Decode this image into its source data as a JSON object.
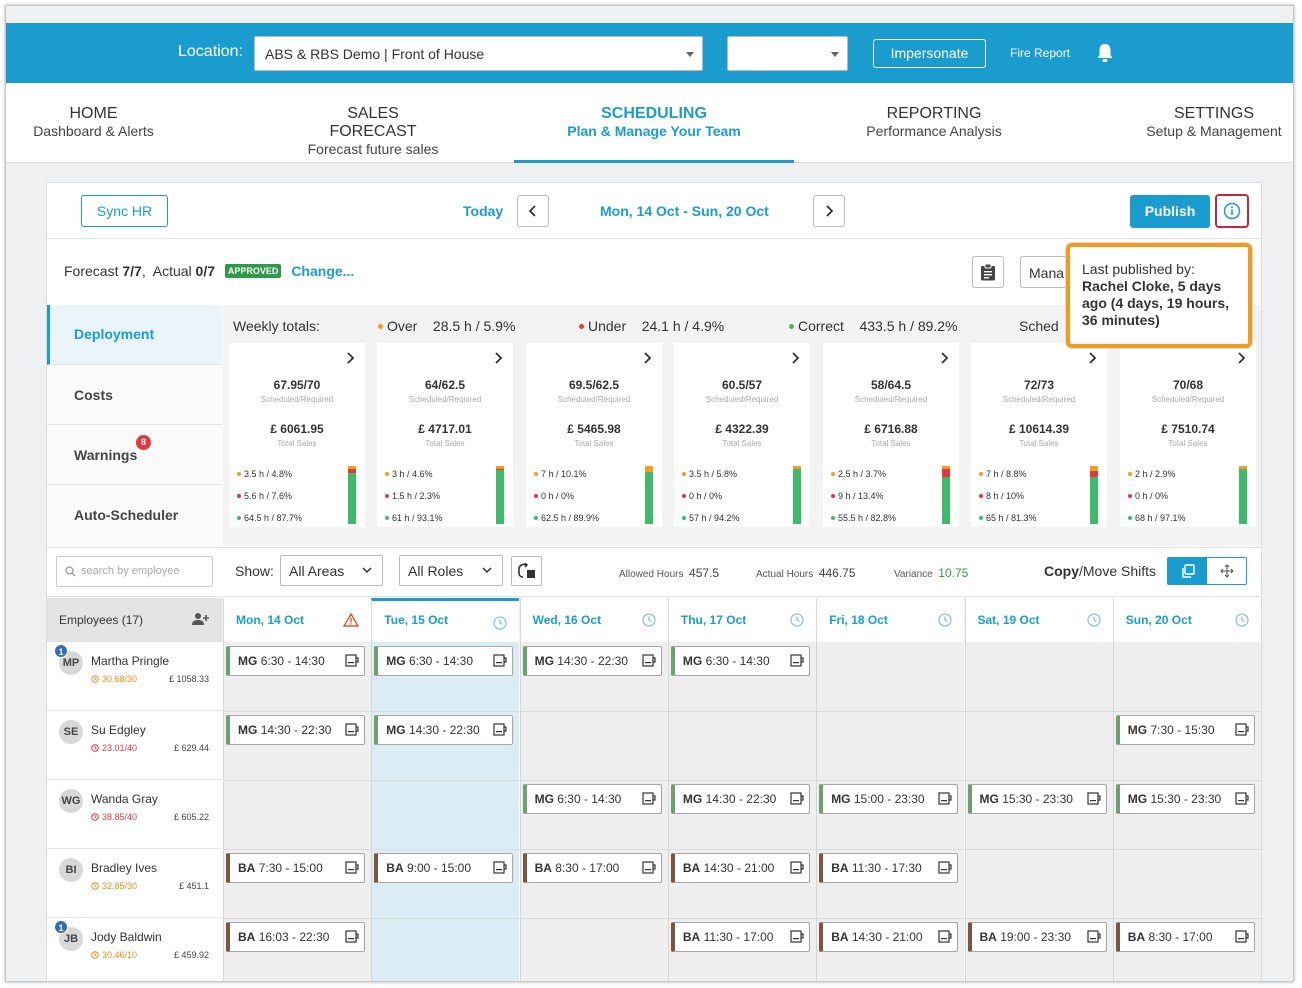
{
  "topbar": {
    "location_label": "Location:",
    "location_value": "ABS & RBS Demo | Front of House",
    "secondary_value": "",
    "impersonate_label": "Impersonate",
    "fire_report_label": "Fire Report",
    "accent_color": "#1a9ccf"
  },
  "nav": [
    {
      "title": "HOME",
      "subtitle": "Dashboard & Alerts"
    },
    {
      "title": "SALES FORECAST",
      "subtitle": "Forecast future sales"
    },
    {
      "title": "SCHEDULING",
      "subtitle": "Plan & Manage Your Team"
    },
    {
      "title": "REPORTING",
      "subtitle": "Performance Analysis"
    },
    {
      "title": "SETTINGS",
      "subtitle": "Setup & Management"
    }
  ],
  "header": {
    "sync_label": "Sync HR",
    "today_label": "Today",
    "date_range": "Mon, 14 Oct - Sun, 20 Oct",
    "publish_label": "Publish"
  },
  "forecast": {
    "forecast_label": "Forecast",
    "forecast_value": "7/7",
    "actual_label": "Actual",
    "actual_value": "0/7",
    "approved_badge": "APPROVED",
    "change_label": "Change...",
    "manager_select": "Mana"
  },
  "tooltip": {
    "line1": "Last published by:",
    "line2": "Rachel Cloke, 5 days ago (4 days, 19 hours, 36 minutes)"
  },
  "side_tabs": [
    {
      "label": "Deployment"
    },
    {
      "label": "Costs"
    },
    {
      "label": "Warnings",
      "badge": "8"
    },
    {
      "label": "Auto-Scheduler"
    }
  ],
  "weekly_totals": {
    "label": "Weekly totals:",
    "over_label": "Over",
    "over_value": "28.5 h  /  5.9%",
    "under_label": "Under",
    "under_value": "24.1 h  /  4.9%",
    "correct_label": "Correct",
    "correct_value": "433.5 h  /  89.2%",
    "sched_label": "Sched"
  },
  "day_cards": [
    {
      "sr": "67.95/70",
      "sales": "£ 6061.95",
      "over": "3.5 h  /  4.8%",
      "under": "5.6 h  /  7.6%",
      "correct": "64.5 h  /  87.7%",
      "bar_over": 0.048,
      "bar_under": 0.076
    },
    {
      "sr": "64/62.5",
      "sales": "£ 4717.01",
      "over": "3 h  /  4.6%",
      "under": "1.5 h  /  2.3%",
      "correct": "61 h  /  93.1%",
      "bar_over": 0.046,
      "bar_under": 0.023
    },
    {
      "sr": "69.5/62.5",
      "sales": "£ 5465.98",
      "over": "7 h  /  10.1%",
      "under": "0 h  /  0%",
      "correct": "62.5 h  /  89.9%",
      "bar_over": 0.101,
      "bar_under": 0
    },
    {
      "sr": "60.5/57",
      "sales": "£ 4322.39",
      "over": "3.5 h  /  5.8%",
      "under": "0 h  /  0%",
      "correct": "57 h  /  94.2%",
      "bar_over": 0.058,
      "bar_under": 0
    },
    {
      "sr": "58/64.5",
      "sales": "£ 6716.88",
      "over": "2.5 h  /  3.7%",
      "under": "9 h  /  13.4%",
      "correct": "55.5 h  /  82.8%",
      "bar_over": 0.037,
      "bar_under": 0.134
    },
    {
      "sr": "72/73",
      "sales": "£ 10614.39",
      "over": "7 h  /  8.8%",
      "under": "8 h  /  10%",
      "correct": "65 h  /  81.3%",
      "bar_over": 0.088,
      "bar_under": 0.1
    },
    {
      "sr": "70/68",
      "sales": "£ 7510.74",
      "over": "2 h  /  2.9%",
      "under": "0 h  /  0%",
      "correct": "68 h  /  97.1%",
      "bar_over": 0.029,
      "bar_under": 0
    }
  ],
  "card_labels": {
    "scheduled_required": "Scheduled/Required",
    "total_sales": "Total Sales"
  },
  "toolbar": {
    "search_placeholder": "search by employee",
    "show_label": "Show:",
    "areas_value": "All Areas",
    "roles_value": "All Roles",
    "allowed_label": "Allowed Hours",
    "allowed_value": "457.5",
    "actual_label": "Actual Hours",
    "actual_value": "446.75",
    "variance_label": "Variance",
    "variance_value": "10.75",
    "copy_label": "Copy",
    "move_label": "/Move Shifts"
  },
  "grid": {
    "employees_header": "Employees (17)",
    "days": [
      "Mon, 14 Oct",
      "Tue, 15 Oct",
      "Wed, 16 Oct",
      "Thu, 17 Oct",
      "Fri, 18 Oct",
      "Sat, 19 Oct",
      "Sun, 20 Oct"
    ],
    "employees": [
      {
        "initials": "MP",
        "name": "Martha Pringle",
        "hours": "30.68/30",
        "hours_color": "#f08c1a",
        "cost": "£ 1058.33",
        "badge": "1",
        "shifts": [
          {
            "role": "MG",
            "time": "6:30 - 14:30"
          },
          {
            "role": "MG",
            "time": "6:30 - 14:30"
          },
          {
            "role": "MG",
            "time": "14:30 - 22:30"
          },
          {
            "role": "MG",
            "time": "6:30 - 14:30"
          },
          null,
          null,
          null
        ]
      },
      {
        "initials": "SE",
        "name": "Su Edgley",
        "hours": "23.01/40",
        "hours_color": "#e2383f",
        "cost": "£ 629.44",
        "badge": "",
        "shifts": [
          {
            "role": "MG",
            "time": "14:30 - 22:30"
          },
          {
            "role": "MG",
            "time": "14:30 - 22:30"
          },
          null,
          null,
          null,
          null,
          {
            "role": "MG",
            "time": "7:30 - 15:30"
          }
        ]
      },
      {
        "initials": "WG",
        "name": "Wanda Gray",
        "hours": "38.85/40",
        "hours_color": "#e2383f",
        "cost": "£ 605.22",
        "badge": "",
        "shifts": [
          null,
          null,
          {
            "role": "MG",
            "time": "6:30 - 14:30"
          },
          {
            "role": "MG",
            "time": "14:30 - 22:30"
          },
          {
            "role": "MG",
            "time": "15:00 - 23:30"
          },
          {
            "role": "MG",
            "time": "15:30 - 23:30"
          },
          {
            "role": "MG",
            "time": "15:30 - 23:30"
          }
        ]
      },
      {
        "initials": "BI",
        "name": "Bradley Ives",
        "hours": "32.85/30",
        "hours_color": "#f08c1a",
        "cost": "£ 451.1",
        "badge": "",
        "shifts": [
          {
            "role": "BA",
            "time": "7:30 - 15:00"
          },
          {
            "role": "BA",
            "time": "9:00 - 15:00"
          },
          {
            "role": "BA",
            "time": "8:30 - 17:00"
          },
          {
            "role": "BA",
            "time": "14:30 - 21:00"
          },
          {
            "role": "BA",
            "time": "11:30 - 17:30"
          },
          null,
          null
        ]
      },
      {
        "initials": "JB",
        "name": "Jody Baldwin",
        "hours": "30.46/10",
        "hours_color": "#f08c1a",
        "cost": "£ 459.92",
        "badge": "1",
        "shifts": [
          {
            "role": "BA",
            "time": "16:03 - 22:30"
          },
          null,
          null,
          {
            "role": "BA",
            "time": "11:30 - 17:00"
          },
          {
            "role": "BA",
            "time": "14:30 - 21:00"
          },
          {
            "role": "BA",
            "time": "19:00 - 23:30"
          },
          {
            "role": "BA",
            "time": "8:30 - 17:00"
          }
        ]
      }
    ]
  }
}
